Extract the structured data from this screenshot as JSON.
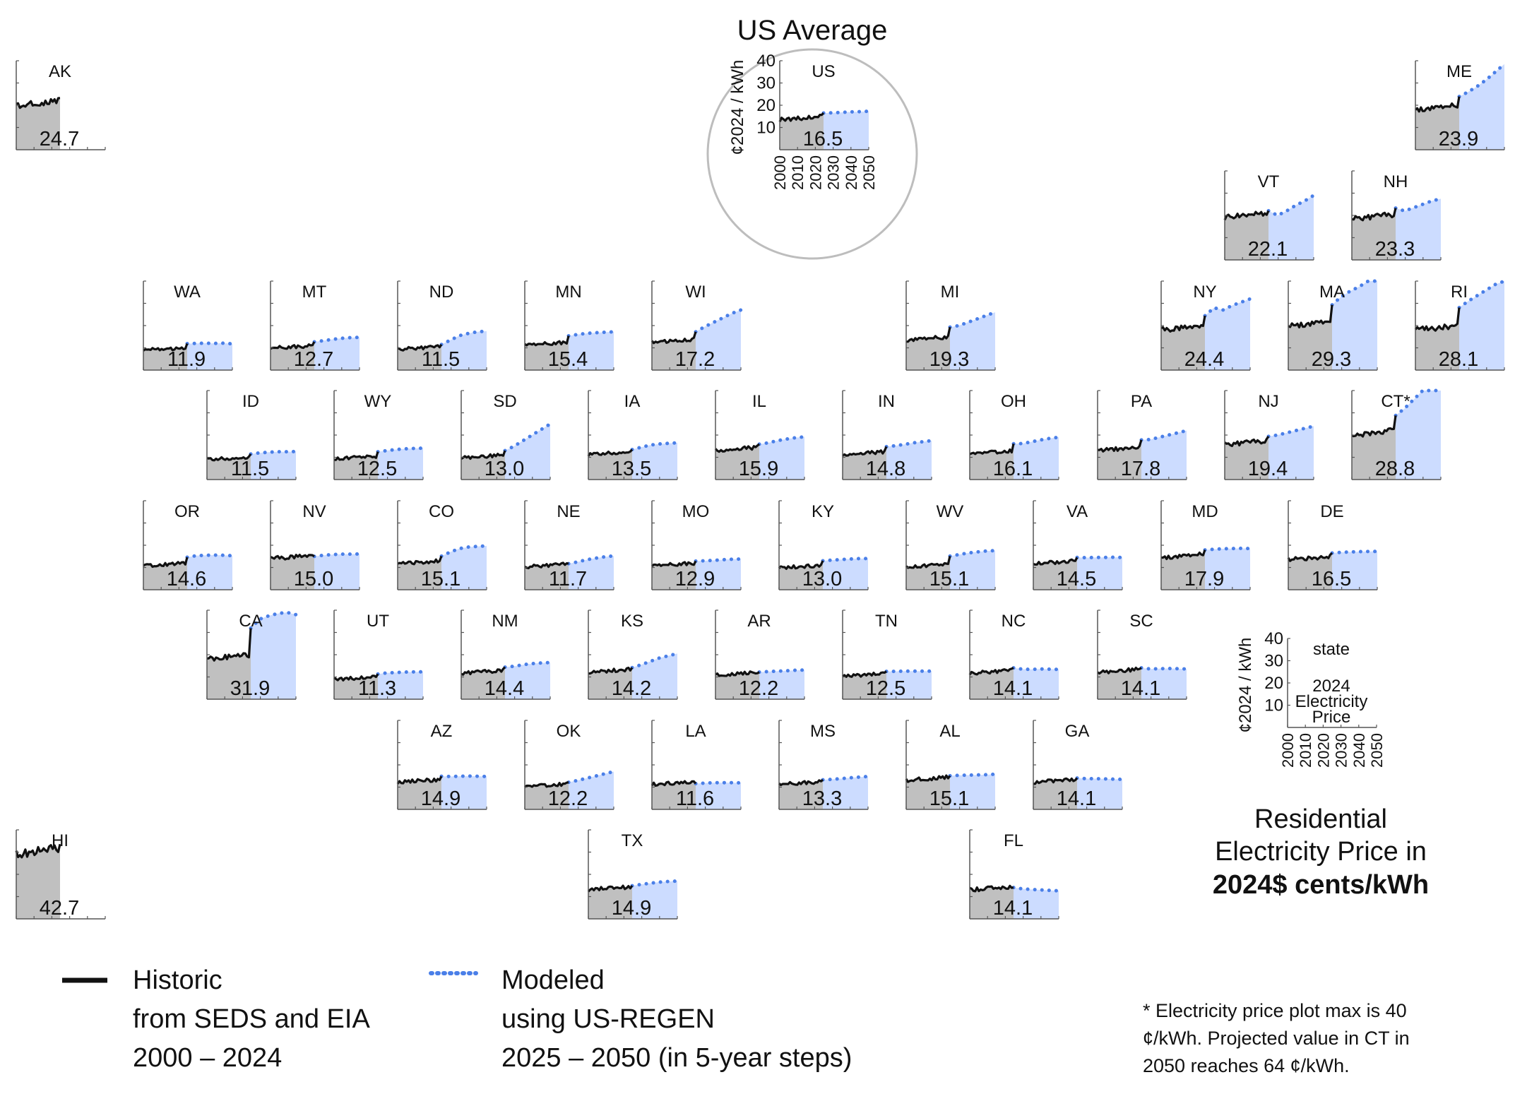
{
  "chart_data": {
    "type": "area",
    "title": "Residential Electricity Price in 2024$ cents/kWh",
    "title_lines": [
      "Residential",
      "Electricity Price in",
      "2024$ cents/kWh"
    ],
    "units": "¢2024 / kWh",
    "ylim": [
      0,
      40
    ],
    "y_ticks": [
      10,
      20,
      30,
      40
    ],
    "x_ticks": [
      "2000",
      "2010",
      "2020",
      "2030",
      "2040",
      "2050"
    ],
    "us_average_label": "US Average",
    "legend": {
      "historic": {
        "line1": "Historic",
        "line2": "from SEDS and EIA",
        "line3": "2000 – 2024"
      },
      "modeled": {
        "line1": "Modeled",
        "line2": "using US-REGEN",
        "line3": "2025 – 2050 (in 5-year steps)"
      }
    },
    "key": {
      "state": "state",
      "value_line1": "2024",
      "value_line2": "Electricity",
      "value_line3": "Price"
    },
    "footnote": [
      "* Electricity price plot max is 40",
      "¢/kWh. Projected value in CT in",
      "2050 reaches 64 ¢/kWh."
    ],
    "colors": {
      "historic_fill": "#c0c0c0",
      "modeled_fill": "#ccdcff",
      "historic_line": "#111111",
      "modeled_line": "#4a7fe8"
    },
    "states": [
      {
        "code": "US",
        "value": "16.5",
        "h": 15.0,
        "m": [
          16.5,
          16.6,
          16.8,
          17.0,
          17.1,
          17.3
        ]
      },
      {
        "code": "AK",
        "value": "24.7",
        "h": 22.0,
        "m": []
      },
      {
        "code": "HI",
        "value": "42.7",
        "h": 32.0,
        "m": []
      },
      {
        "code": "ME",
        "value": "23.9",
        "h": 20.0,
        "m": [
          23.9,
          26.0,
          28.5,
          31.5,
          35.0,
          38.5
        ]
      },
      {
        "code": "VT",
        "value": "22.1",
        "h": 21.0,
        "m": [
          22.1,
          20.0,
          22.0,
          24.5,
          26.5,
          29.0
        ]
      },
      {
        "code": "NH",
        "value": "23.3",
        "h": 20.5,
        "m": [
          23.3,
          22.0,
          23.5,
          25.0,
          26.5,
          27.5
        ]
      },
      {
        "code": "WA",
        "value": "11.9",
        "h": 10.0,
        "m": [
          11.9,
          12.0,
          12.1,
          12.0,
          12.1,
          11.8
        ]
      },
      {
        "code": "MT",
        "value": "12.7",
        "h": 11.0,
        "m": [
          12.7,
          13.2,
          13.8,
          14.3,
          14.6,
          14.7
        ]
      },
      {
        "code": "ND",
        "value": "11.5",
        "h": 10.5,
        "m": [
          11.5,
          13.5,
          15.5,
          16.5,
          17.2,
          17.5
        ]
      },
      {
        "code": "MN",
        "value": "15.4",
        "h": 12.5,
        "m": [
          15.4,
          16.0,
          16.5,
          16.8,
          17.0,
          17.2
        ]
      },
      {
        "code": "WI",
        "value": "17.2",
        "h": 14.0,
        "m": [
          17.2,
          19.5,
          21.5,
          23.5,
          25.5,
          27.0
        ]
      },
      {
        "code": "MI",
        "value": "19.3",
        "h": 15.0,
        "m": [
          19.3,
          20.0,
          21.5,
          23.0,
          24.5,
          26.0
        ]
      },
      {
        "code": "NY",
        "value": "24.4",
        "h": 20.0,
        "m": [
          24.4,
          28.0,
          27.0,
          29.0,
          30.5,
          32.0
        ]
      },
      {
        "code": "MA",
        "value": "29.3",
        "h": 22.0,
        "m": [
          29.3,
          33.0,
          35.5,
          37.5,
          40.0,
          43.0
        ]
      },
      {
        "code": "RI",
        "value": "28.1",
        "h": 20.0,
        "m": [
          28.1,
          31.0,
          33.5,
          36.0,
          38.5,
          40.0
        ]
      },
      {
        "code": "ID",
        "value": "11.5",
        "h": 10.0,
        "m": [
          11.5,
          12.0,
          12.3,
          12.5,
          12.5,
          12.6
        ]
      },
      {
        "code": "WY",
        "value": "12.5",
        "h": 10.5,
        "m": [
          12.5,
          13.0,
          13.5,
          13.8,
          14.0,
          14.1
        ]
      },
      {
        "code": "SD",
        "value": "13.0",
        "h": 11.0,
        "m": [
          13.0,
          15.0,
          17.5,
          20.0,
          22.5,
          25.0
        ]
      },
      {
        "code": "IA",
        "value": "13.5",
        "h": 12.5,
        "m": [
          13.5,
          14.5,
          15.5,
          16.0,
          16.3,
          16.5
        ]
      },
      {
        "code": "IL",
        "value": "15.9",
        "h": 14.5,
        "m": [
          15.9,
          16.5,
          17.5,
          18.2,
          18.8,
          19.2
        ]
      },
      {
        "code": "IN",
        "value": "14.8",
        "h": 12.5,
        "m": [
          14.8,
          15.2,
          15.8,
          16.5,
          17.0,
          17.5
        ]
      },
      {
        "code": "OH",
        "value": "16.1",
        "h": 13.0,
        "m": [
          16.1,
          16.2,
          17.0,
          17.8,
          18.5,
          19.0
        ]
      },
      {
        "code": "PA",
        "value": "17.8",
        "h": 14.5,
        "m": [
          17.8,
          18.0,
          19.0,
          20.0,
          21.0,
          22.0
        ]
      },
      {
        "code": "NJ",
        "value": "19.4",
        "h": 17.5,
        "m": [
          19.4,
          20.0,
          21.0,
          22.0,
          23.0,
          24.0
        ]
      },
      {
        "code": "CT*",
        "value": "28.8",
        "h": 22.0,
        "m": [
          28.8,
          32.0,
          36.0,
          40.0,
          40.0,
          40.0
        ]
      },
      {
        "code": "OR",
        "value": "14.6",
        "h": 12.0,
        "m": [
          14.6,
          15.3,
          15.5,
          15.6,
          15.5,
          15.3
        ]
      },
      {
        "code": "NV",
        "value": "15.0",
        "h": 15.5,
        "m": [
          15.0,
          15.5,
          15.8,
          16.0,
          16.0,
          16.1
        ]
      },
      {
        "code": "CO",
        "value": "15.1",
        "h": 13.0,
        "m": [
          15.1,
          17.0,
          18.5,
          19.2,
          19.5,
          19.7
        ]
      },
      {
        "code": "NE",
        "value": "11.7",
        "h": 11.5,
        "m": [
          11.7,
          12.5,
          13.5,
          14.2,
          14.8,
          15.2
        ]
      },
      {
        "code": "MO",
        "value": "12.9",
        "h": 12.0,
        "m": [
          12.9,
          13.0,
          13.2,
          13.5,
          13.7,
          13.8
        ]
      },
      {
        "code": "KY",
        "value": "13.0",
        "h": 11.0,
        "m": [
          13.0,
          13.3,
          13.6,
          13.8,
          14.0,
          14.0
        ]
      },
      {
        "code": "WV",
        "value": "15.1",
        "h": 11.5,
        "m": [
          15.1,
          15.8,
          16.5,
          17.0,
          17.4,
          17.6
        ]
      },
      {
        "code": "VA",
        "value": "14.5",
        "h": 13.0,
        "m": [
          14.5,
          14.4,
          14.5,
          14.5,
          14.6,
          14.5
        ]
      },
      {
        "code": "MD",
        "value": "17.9",
        "h": 16.0,
        "m": [
          17.9,
          18.2,
          18.4,
          18.5,
          18.6,
          18.5
        ]
      },
      {
        "code": "DE",
        "value": "16.5",
        "h": 15.0,
        "m": [
          16.5,
          16.8,
          17.0,
          17.1,
          17.2,
          17.2
        ]
      },
      {
        "code": "CA",
        "value": "31.9",
        "h": 20.0,
        "m": [
          31.9,
          36.0,
          37.5,
          38.5,
          39.0,
          38.0
        ]
      },
      {
        "code": "UT",
        "value": "11.3",
        "h": 10.0,
        "m": [
          11.3,
          11.8,
          12.0,
          12.2,
          12.3,
          12.3
        ]
      },
      {
        "code": "NM",
        "value": "14.4",
        "h": 13.0,
        "m": [
          14.4,
          14.8,
          15.5,
          16.0,
          16.3,
          16.5
        ]
      },
      {
        "code": "KS",
        "value": "14.2",
        "h": 13.5,
        "m": [
          14.2,
          15.5,
          17.0,
          18.5,
          19.5,
          20.5
        ]
      },
      {
        "code": "AR",
        "value": "12.2",
        "h": 12.0,
        "m": [
          12.2,
          12.4,
          12.6,
          12.8,
          13.0,
          13.1
        ]
      },
      {
        "code": "TN",
        "value": "12.5",
        "h": 11.5,
        "m": [
          12.5,
          12.5,
          12.6,
          12.6,
          12.6,
          12.6
        ]
      },
      {
        "code": "NC",
        "value": "14.1",
        "h": 13.0,
        "m": [
          14.1,
          13.5,
          13.4,
          13.6,
          13.5,
          13.4
        ]
      },
      {
        "code": "SC",
        "value": "14.1",
        "h": 13.5,
        "m": [
          14.1,
          13.6,
          13.7,
          13.8,
          13.7,
          13.6
        ]
      },
      {
        "code": "AZ",
        "value": "14.9",
        "h": 13.5,
        "m": [
          14.9,
          14.8,
          14.9,
          15.0,
          14.9,
          14.8
        ]
      },
      {
        "code": "OK",
        "value": "12.2",
        "h": 11.5,
        "m": [
          12.2,
          13.0,
          14.0,
          15.0,
          16.0,
          17.0
        ]
      },
      {
        "code": "LA",
        "value": "11.6",
        "h": 12.5,
        "m": [
          11.6,
          11.8,
          12.0,
          12.0,
          12.0,
          11.9
        ]
      },
      {
        "code": "MS",
        "value": "13.3",
        "h": 12.5,
        "m": [
          13.3,
          13.5,
          13.8,
          14.2,
          14.5,
          14.8
        ]
      },
      {
        "code": "AL",
        "value": "15.1",
        "h": 14.5,
        "m": [
          15.1,
          15.3,
          15.4,
          15.5,
          15.6,
          15.8
        ]
      },
      {
        "code": "GA",
        "value": "14.1",
        "h": 13.5,
        "m": [
          14.1,
          13.8,
          13.8,
          13.7,
          13.6,
          13.5
        ]
      },
      {
        "code": "TX",
        "value": "14.9",
        "h": 14.5,
        "m": [
          14.9,
          15.5,
          16.0,
          16.5,
          16.8,
          17.0
        ]
      },
      {
        "code": "FL",
        "value": "14.1",
        "h": 14.5,
        "m": [
          14.1,
          13.5,
          13.2,
          13.0,
          12.8,
          12.6
        ]
      }
    ]
  }
}
